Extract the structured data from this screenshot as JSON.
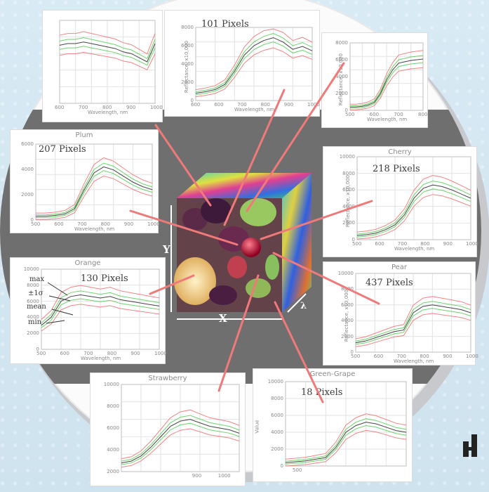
{
  "panels": [
    {
      "key": "topleft",
      "title": "",
      "pixels": "",
      "xticks": [
        "600",
        "700",
        "800",
        "900",
        "1000"
      ],
      "yticks": [],
      "ylabel": "",
      "xlabel": "Wavelength, nm"
    },
    {
      "key": "topcenter",
      "title": "",
      "pixels": "101 Pixels",
      "xticks": [
        "600",
        "600",
        "700",
        "800",
        "900",
        "1000"
      ],
      "yticks": [
        "8000",
        "6000",
        "4000",
        "2000",
        "0"
      ],
      "ylabel": "Reflectance, x10,000",
      "xlabel": "Wavelength, nm"
    },
    {
      "key": "topright",
      "title": "",
      "pixels": "",
      "xticks": [
        "500",
        "600",
        "700",
        "800"
      ],
      "yticks": [
        "8000",
        "6000",
        "4000",
        "2000",
        "0"
      ],
      "ylabel": "Reflectance, x10,000",
      "xlabel": "Wavelength, nm"
    },
    {
      "key": "plum",
      "title": "Plum",
      "pixels": "207 Pixels",
      "xticks": [
        "500",
        "600",
        "700",
        "800",
        "900",
        "1000"
      ],
      "yticks": [
        "6000",
        "4000",
        "2000",
        "0"
      ],
      "ylabel": "",
      "xlabel": "Wavelength, nm"
    },
    {
      "key": "cherry",
      "title": "Cherry",
      "pixels": "218 Pixels",
      "xticks": [
        "500",
        "600",
        "700",
        "800",
        "900",
        "1000"
      ],
      "yticks": [
        "10000",
        "8000",
        "6000",
        "4000",
        "2000",
        "0"
      ],
      "ylabel": "Reflectance, x10,000",
      "xlabel": "Wavelength, nm"
    },
    {
      "key": "orange",
      "title": "Orange",
      "pixels": "130 Pixels",
      "xticks": [
        "500",
        "600",
        "700",
        "800",
        "900",
        "1000"
      ],
      "yticks": [
        "10000",
        "8000",
        "6000",
        "4000",
        "2000",
        "0"
      ],
      "ylabel": "",
      "xlabel": "Wavelength, nm"
    },
    {
      "key": "pear",
      "title": "Pear",
      "pixels": "437 Pixels",
      "xticks": [
        "500",
        "600",
        "700",
        "800",
        "900",
        "1000"
      ],
      "yticks": [
        "10000",
        "8000",
        "6000",
        "4000",
        "2000",
        "0"
      ],
      "ylabel": "Reflectance, x10,000",
      "xlabel": "Wavelength, nm"
    },
    {
      "key": "strawberry",
      "title": "Strawberry",
      "pixels": "",
      "xticks": [
        "900",
        "1000"
      ],
      "yticks": [
        "10000",
        "8000",
        "6000",
        "4000",
        "2000"
      ],
      "ylabel": "",
      "xlabel": ""
    },
    {
      "key": "grape",
      "title": "Green-Grape",
      "pixels": "18 Pixels",
      "xticks": [
        "500"
      ],
      "yticks": [
        "10000",
        "8000",
        "6000",
        "4000",
        "2000",
        "0"
      ],
      "ylabel": "Value",
      "xlabel": ""
    }
  ],
  "legend": {
    "max": "max",
    "sigma": "±1σ",
    "mean": "mean",
    "min": "min"
  },
  "cube": {
    "x": "X",
    "y": "Y",
    "lambda": "λ"
  },
  "colors": {
    "red": "#f07070",
    "green": "#55cc55",
    "black": "#222222",
    "pointer": "#f07a7a",
    "bg_grey": "#6f6f6f"
  }
}
